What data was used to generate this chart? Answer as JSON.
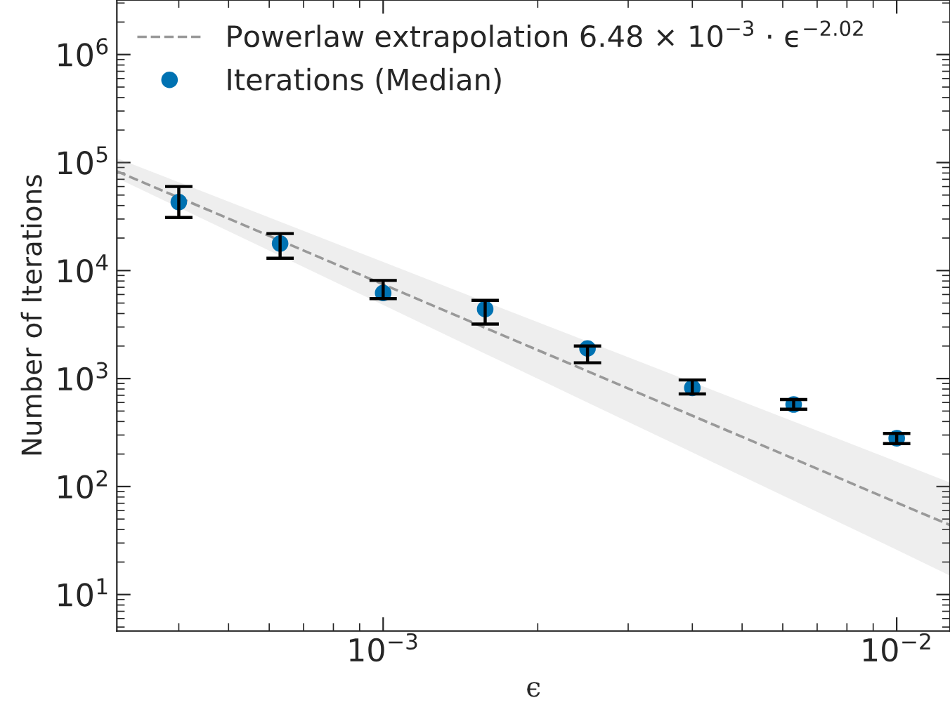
{
  "chart_data": {
    "type": "scatter",
    "xlabel": "ϵ",
    "ylabel": "Number of Iterations",
    "log": "xy",
    "grid": false,
    "legend": "top left",
    "xlim": [
      0.000303,
      0.0127
    ],
    "ylim": [
      4.6,
      3200000
    ],
    "xticks": [
      {
        "value": 0.001,
        "label": "10$^{−3}$"
      },
      {
        "value": 0.01,
        "label": "10$^{−2}$"
      }
    ],
    "yticks": [
      {
        "value": 10,
        "label": "10$^{1}$"
      },
      {
        "value": 100,
        "label": "10$^{2}$"
      },
      {
        "value": 1000,
        "label": "10$^{3}$"
      },
      {
        "value": 10000,
        "label": "10$^{4}$"
      },
      {
        "value": 100000,
        "label": "10$^{5}$"
      },
      {
        "value": 1000000,
        "label": "10$^{6}$"
      }
    ],
    "series": [
      {
        "name": "Powerlaw extrapolation 6.48 × 10$^{−3}$ · ϵ$^{−2.02}$",
        "type": "line",
        "color": "#999999",
        "line_style": "dashed",
        "x": [
          0.000303,
          0.00063,
          0.001,
          0.00158,
          0.0025,
          0.004,
          0.0063,
          0.01,
          0.0127
        ],
        "values": [
          83000,
          19000,
          7450,
          2950,
          1170,
          453,
          181,
          71,
          44
        ],
        "lower": [
          72000,
          13700,
          4800,
          1700,
          600,
          207,
          74,
          26,
          15
        ],
        "upper": [
          110000,
          28300,
          12000,
          5150,
          2210,
          925,
          400,
          170,
          109
        ]
      },
      {
        "name": "Iterations (Median)",
        "color": "#0072b2",
        "marker": "circle",
        "x": [
          0.0004,
          0.00063,
          0.001,
          0.00158,
          0.0025,
          0.004,
          0.0063,
          0.01
        ],
        "values": [
          43000,
          17800,
          6200,
          4400,
          1900,
          820,
          575,
          280
        ],
        "errors": [
          [
            31000,
            60000
          ],
          [
            13000,
            22000
          ],
          [
            5500,
            8100
          ],
          [
            3200,
            5300
          ],
          [
            1400,
            2000
          ],
          [
            720,
            970
          ],
          [
            520,
            640
          ],
          [
            250,
            310
          ]
        ]
      }
    ]
  }
}
